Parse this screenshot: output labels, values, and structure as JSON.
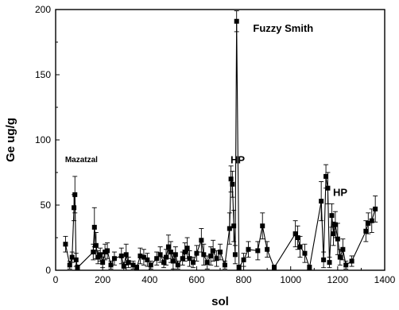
{
  "chart_data": {
    "type": "scatter",
    "xlabel": "sol",
    "ylabel": "Ge ug/g",
    "xlim": [
      0,
      1400
    ],
    "ylim": [
      0,
      200
    ],
    "x_ticks": [
      0,
      200,
      400,
      600,
      800,
      1000,
      1200,
      1400
    ],
    "y_ticks": [
      0,
      50,
      100,
      150,
      200
    ],
    "grid": false,
    "connected": true,
    "error_bars": true,
    "annotations": [
      {
        "text": "Fuzzy Smith",
        "x": 840,
        "y": 183
      },
      {
        "text": "HP",
        "x": 744,
        "y": 82
      },
      {
        "text": "HP",
        "x": 1180,
        "y": 57
      },
      {
        "text": "Mazatzal",
        "x": 40,
        "y": 83
      }
    ],
    "series": [
      {
        "points": [
          [
            42,
            20,
            6
          ],
          [
            60,
            4,
            3
          ],
          [
            70,
            10,
            4
          ],
          [
            78,
            48,
            10
          ],
          [
            82,
            58,
            14
          ],
          [
            87,
            8,
            5
          ],
          [
            93,
            2,
            2
          ],
          [
            160,
            14,
            6
          ],
          [
            165,
            33,
            15
          ],
          [
            172,
            19,
            10
          ],
          [
            180,
            10,
            5
          ],
          [
            190,
            12,
            5
          ],
          [
            200,
            6,
            4
          ],
          [
            210,
            14,
            6
          ],
          [
            220,
            15,
            6
          ],
          [
            235,
            4,
            3
          ],
          [
            250,
            9,
            5
          ],
          [
            280,
            11,
            6
          ],
          [
            290,
            3,
            3
          ],
          [
            300,
            12,
            8
          ],
          [
            310,
            6,
            4
          ],
          [
            330,
            4,
            3
          ],
          [
            345,
            2,
            2
          ],
          [
            360,
            11,
            6
          ],
          [
            375,
            10,
            6
          ],
          [
            390,
            8,
            5
          ],
          [
            405,
            4,
            3
          ],
          [
            430,
            9,
            5
          ],
          [
            445,
            12,
            6
          ],
          [
            460,
            6,
            4
          ],
          [
            470,
            10,
            6
          ],
          [
            480,
            18,
            9
          ],
          [
            490,
            14,
            8
          ],
          [
            500,
            7,
            6
          ],
          [
            510,
            12,
            6
          ],
          [
            520,
            4,
            3
          ],
          [
            540,
            9,
            5
          ],
          [
            550,
            14,
            7
          ],
          [
            560,
            17,
            8
          ],
          [
            570,
            9,
            6
          ],
          [
            585,
            6,
            4
          ],
          [
            600,
            13,
            6
          ],
          [
            620,
            23,
            9
          ],
          [
            630,
            12,
            8
          ],
          [
            645,
            6,
            5
          ],
          [
            660,
            11,
            7
          ],
          [
            670,
            15,
            8
          ],
          [
            685,
            9,
            6
          ],
          [
            700,
            14,
            6
          ],
          [
            720,
            4,
            3
          ],
          [
            740,
            32,
            12
          ],
          [
            746,
            70,
            10
          ],
          [
            752,
            66,
            10
          ],
          [
            758,
            34,
            12
          ],
          [
            764,
            12,
            7
          ],
          [
            770,
            191,
            8
          ],
          [
            780,
            2,
            2
          ],
          [
            800,
            8,
            5
          ],
          [
            820,
            16,
            6
          ],
          [
            860,
            15,
            7
          ],
          [
            880,
            34,
            10
          ],
          [
            900,
            16,
            6
          ],
          [
            930,
            2,
            2
          ],
          [
            1020,
            28,
            10
          ],
          [
            1030,
            25,
            9
          ],
          [
            1040,
            18,
            8
          ],
          [
            1060,
            13,
            7
          ],
          [
            1080,
            2,
            2
          ],
          [
            1130,
            53,
            15
          ],
          [
            1140,
            8,
            6
          ],
          [
            1150,
            72,
            9
          ],
          [
            1158,
            63,
            12
          ],
          [
            1165,
            6,
            4
          ],
          [
            1175,
            42,
            9
          ],
          [
            1182,
            28,
            9
          ],
          [
            1190,
            35,
            10
          ],
          [
            1200,
            24,
            12
          ],
          [
            1210,
            10,
            6
          ],
          [
            1222,
            16,
            8
          ],
          [
            1235,
            4,
            3
          ],
          [
            1260,
            7,
            4
          ],
          [
            1320,
            30,
            8
          ],
          [
            1330,
            36,
            8
          ],
          [
            1345,
            38,
            9
          ],
          [
            1360,
            47,
            10
          ]
        ]
      }
    ]
  }
}
